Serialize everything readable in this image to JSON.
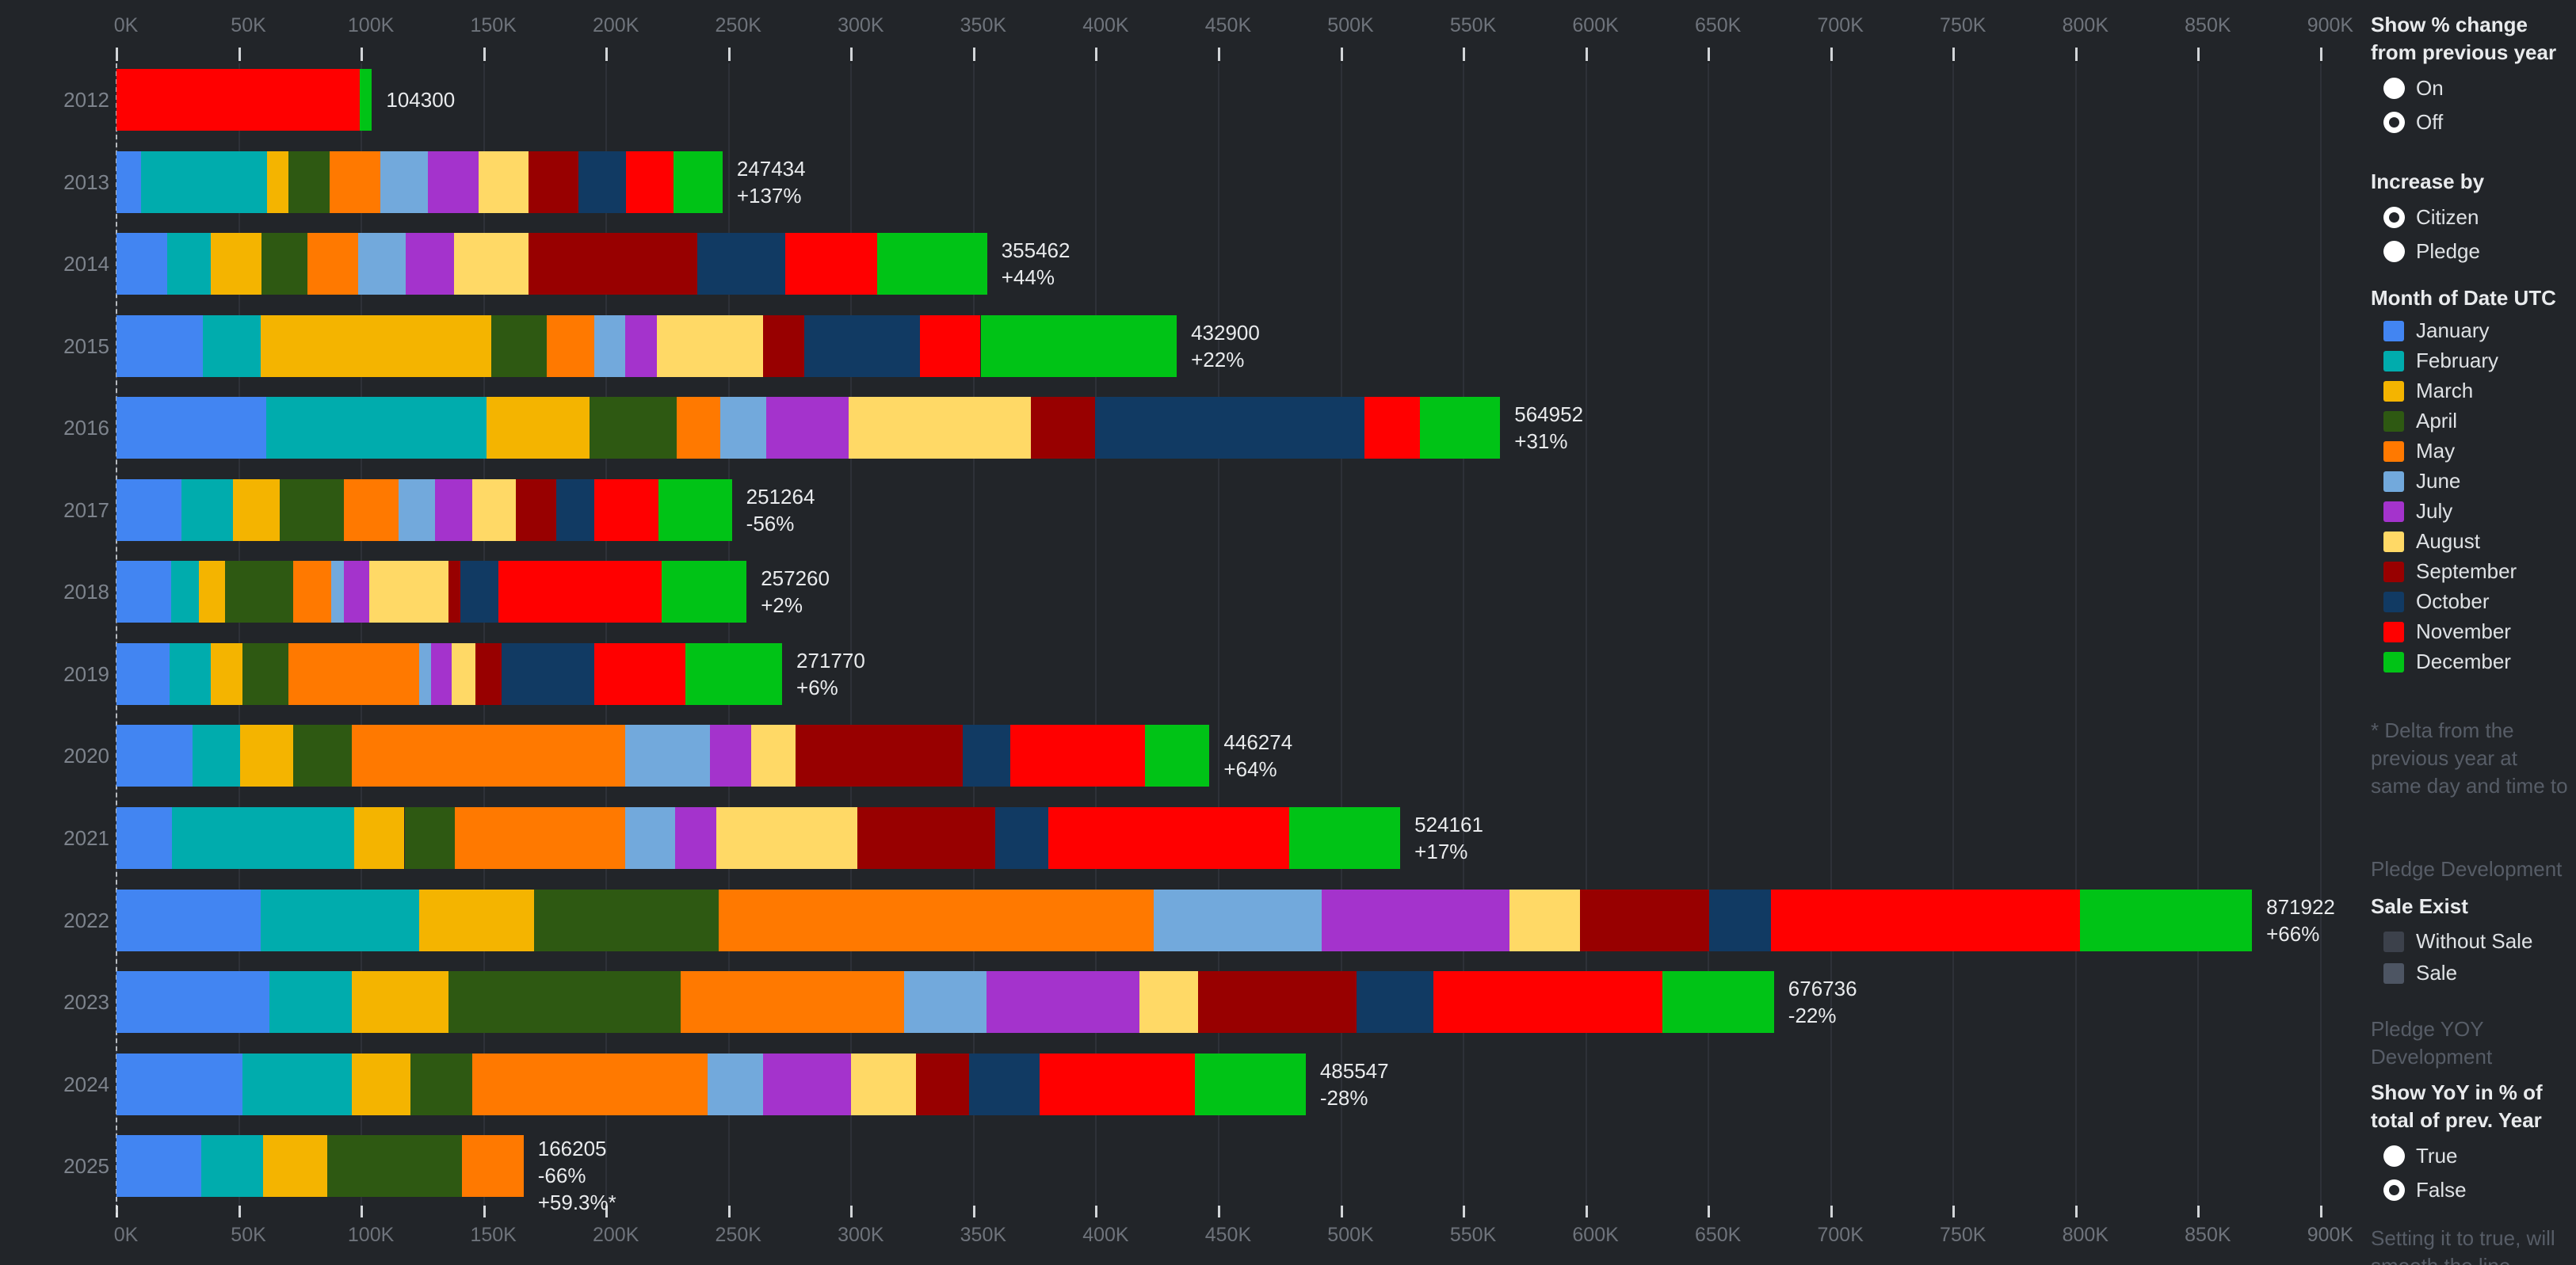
{
  "sidebar": {
    "show_pct": {
      "title": "Show % change from previous year",
      "options": [
        {
          "label": "On",
          "selected": false
        },
        {
          "label": "Off",
          "selected": true
        }
      ]
    },
    "increase_by": {
      "title": "Increase by",
      "options": [
        {
          "label": "Citizen",
          "selected": true
        },
        {
          "label": "Pledge",
          "selected": false
        }
      ]
    },
    "month_legend_title": "Month of Date UTC",
    "delta_note": "* Delta from the previous year at same day and time to",
    "pledge_development_label": "Pledge Development",
    "sale_exist": {
      "title": "Sale Exist",
      "items": [
        {
          "label": "Without Sale",
          "color": "#3c414b"
        },
        {
          "label": "Sale",
          "color": "#4d5563"
        }
      ]
    },
    "pledge_yoy_label": "Pledge YOY Development",
    "yoy_pct": {
      "title": "Show YoY in % of total of prev. Year",
      "options": [
        {
          "label": "True",
          "selected": false
        },
        {
          "label": "False",
          "selected": true
        }
      ]
    },
    "footer_note": "Setting it to true, will smooth the line,"
  },
  "chart_data": {
    "type": "bar",
    "stacked": true,
    "orientation": "horizontal",
    "title": "",
    "xlabel": "",
    "ylabel": "",
    "x_axis": {
      "min": 0,
      "max": 900000,
      "tick_step": 50000,
      "tick_labels": [
        "0K",
        "50K",
        "100K",
        "150K",
        "200K",
        "250K",
        "300K",
        "350K",
        "400K",
        "450K",
        "500K",
        "550K",
        "600K",
        "650K",
        "700K",
        "750K",
        "800K",
        "850K",
        "900K"
      ]
    },
    "legend_position": "right",
    "series": [
      {
        "name": "January",
        "color": "#4285f2"
      },
      {
        "name": "February",
        "color": "#00acad"
      },
      {
        "name": "March",
        "color": "#f4b400"
      },
      {
        "name": "April",
        "color": "#2e5912"
      },
      {
        "name": "May",
        "color": "#ff7900"
      },
      {
        "name": "June",
        "color": "#72a9dc"
      },
      {
        "name": "July",
        "color": "#a433cc"
      },
      {
        "name": "August",
        "color": "#ffd966"
      },
      {
        "name": "September",
        "color": "#980000"
      },
      {
        "name": "October",
        "color": "#113a63"
      },
      {
        "name": "November",
        "color": "#ff0000"
      },
      {
        "name": "December",
        "color": "#00c316"
      }
    ],
    "rows": [
      {
        "year": "2012",
        "labels": [
          "104300"
        ],
        "values": {
          "November": 99300,
          "December": 5000
        }
      },
      {
        "year": "2013",
        "labels": [
          "247434",
          "+137%"
        ],
        "values": {
          "January": 10000,
          "February": 51600,
          "March": 8600,
          "April": 16700,
          "May": 20700,
          "June": 19600,
          "July": 20700,
          "August": 20400,
          "September": 20200,
          "October": 19400,
          "November": 19600,
          "December": 19934
        }
      },
      {
        "year": "2014",
        "labels": [
          "355462",
          "+44%"
        ],
        "values": {
          "January": 20700,
          "February": 17700,
          "March": 20700,
          "April": 18800,
          "May": 20700,
          "June": 19600,
          "July": 19600,
          "August": 30400,
          "September": 69100,
          "October": 35800,
          "November": 37400,
          "December": 44962
        }
      },
      {
        "year": "2015",
        "labels": [
          "432900",
          "+22%"
        ],
        "values": {
          "January": 35400,
          "February": 23400,
          "March": 94200,
          "April": 22800,
          "May": 19200,
          "June": 12600,
          "July": 13200,
          "August": 43200,
          "September": 16800,
          "October": 47400,
          "November": 24600,
          "December": 80100
        }
      },
      {
        "year": "2016",
        "labels": [
          "564952",
          "+31%"
        ],
        "values": {
          "January": 61200,
          "February": 90000,
          "March": 42000,
          "April": 35400,
          "May": 18000,
          "June": 18600,
          "July": 33600,
          "August": 74400,
          "September": 26400,
          "October": 109800,
          "November": 22800,
          "December": 32752
        }
      },
      {
        "year": "2017",
        "labels": [
          "251264",
          "-56%"
        ],
        "values": {
          "January": 26400,
          "February": 21000,
          "March": 19200,
          "April": 26400,
          "May": 22200,
          "June": 15000,
          "July": 15000,
          "August": 18000,
          "September": 16200,
          "October": 15600,
          "November": 26400,
          "December": 29864
        }
      },
      {
        "year": "2018",
        "labels": [
          "257260",
          "+2%"
        ],
        "values": {
          "January": 22200,
          "February": 11400,
          "March": 10800,
          "April": 27600,
          "May": 15600,
          "June": 5400,
          "July": 10200,
          "August": 32400,
          "September": 4800,
          "October": 15600,
          "November": 66600,
          "December": 34660
        }
      },
      {
        "year": "2019",
        "labels": [
          "271770",
          "+6%"
        ],
        "values": {
          "January": 21600,
          "February": 16800,
          "March": 13200,
          "April": 18600,
          "May": 53400,
          "June": 4800,
          "July": 8400,
          "August": 9600,
          "September": 10800,
          "October": 37800,
          "November": 37200,
          "December": 39570
        }
      },
      {
        "year": "2020",
        "labels": [
          "446274",
          "+64%"
        ],
        "values": {
          "January": 31200,
          "February": 19200,
          "March": 21600,
          "April": 24000,
          "May": 111600,
          "June": 34800,
          "July": 16800,
          "August": 18000,
          "September": 68400,
          "October": 19200,
          "November": 55200,
          "December": 26274
        }
      },
      {
        "year": "2021",
        "labels": [
          "524161",
          "+17%"
        ],
        "values": {
          "January": 22800,
          "February": 74400,
          "March": 20400,
          "April": 20400,
          "May": 69600,
          "June": 20400,
          "July": 16800,
          "August": 57600,
          "September": 56400,
          "October": 21600,
          "November": 98400,
          "December": 45361
        }
      },
      {
        "year": "2022",
        "labels": [
          "871922",
          "+66%"
        ],
        "values": {
          "January": 58800,
          "February": 64800,
          "March": 46800,
          "April": 75600,
          "May": 177600,
          "June": 68400,
          "July": 76800,
          "August": 28800,
          "September": 52800,
          "October": 25200,
          "November": 126000,
          "December": 70322
        }
      },
      {
        "year": "2023",
        "labels": [
          "676736",
          "-22%"
        ],
        "values": {
          "January": 62400,
          "February": 33600,
          "March": 39600,
          "April": 94800,
          "May": 91200,
          "June": 33600,
          "July": 62400,
          "August": 24000,
          "September": 64800,
          "October": 31200,
          "November": 93600,
          "December": 45536
        }
      },
      {
        "year": "2024",
        "labels": [
          "485547",
          "-28%"
        ],
        "values": {
          "January": 51600,
          "February": 44400,
          "March": 24000,
          "April": 25200,
          "May": 96000,
          "June": 22800,
          "July": 36000,
          "August": 26400,
          "September": 21600,
          "October": 28800,
          "November": 63600,
          "December": 45147
        }
      },
      {
        "year": "2025",
        "labels": [
          "166205",
          "-66%",
          "+59.3%*"
        ],
        "values": {
          "January": 34600,
          "February": 25200,
          "March": 26300,
          "April": 55000,
          "May": 25105
        }
      }
    ]
  }
}
